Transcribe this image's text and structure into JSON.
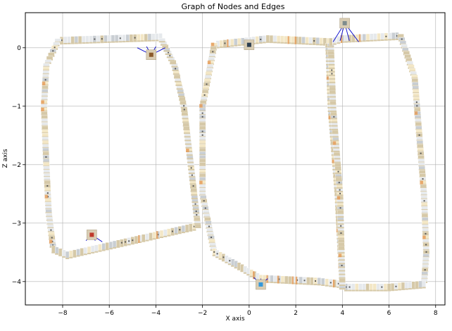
{
  "chart_data": {
    "type": "scatter",
    "title": "Graph of Nodes and Edges",
    "xlabel": "X axis",
    "ylabel": "Z axis",
    "xlim": [
      -9.6,
      8.4
    ],
    "ylim": [
      -4.4,
      0.6
    ],
    "xticks": [
      -8,
      -6,
      -4,
      -2,
      0,
      2,
      4,
      6,
      8
    ],
    "yticks": [
      0,
      -1,
      -2,
      -3,
      -4
    ],
    "xtick_labels": [
      "−8",
      "−6",
      "−4",
      "−2",
      "0",
      "2",
      "4",
      "6",
      "8"
    ],
    "ytick_labels": [
      "0",
      "−1",
      "−2",
      "−3",
      "−4"
    ],
    "grid": true,
    "trajectory_loops": [
      {
        "points": [
          {
            "x": -3.8,
            "z": 0.18
          },
          {
            "x": -8.2,
            "z": 0.12
          },
          {
            "x": -8.7,
            "z": -0.3
          },
          {
            "x": -8.8,
            "z": -1.0
          },
          {
            "x": -8.7,
            "z": -2.0
          },
          {
            "x": -8.6,
            "z": -2.8
          },
          {
            "x": -8.4,
            "z": -3.45
          },
          {
            "x": -7.8,
            "z": -3.55
          },
          {
            "x": -5.0,
            "z": -3.3
          },
          {
            "x": -2.2,
            "z": -3.05
          },
          {
            "x": -2.5,
            "z": -2.0
          },
          {
            "x": -2.8,
            "z": -1.0
          },
          {
            "x": -3.2,
            "z": -0.3
          },
          {
            "x": -3.8,
            "z": 0.18
          }
        ]
      },
      {
        "points": [
          {
            "x": 3.4,
            "z": 0.1
          },
          {
            "x": 0.8,
            "z": 0.15
          },
          {
            "x": -1.5,
            "z": 0.05
          },
          {
            "x": -2.0,
            "z": -1.0
          },
          {
            "x": -2.0,
            "z": -2.5
          },
          {
            "x": -1.5,
            "z": -3.5
          },
          {
            "x": 0.5,
            "z": -3.95
          },
          {
            "x": 3.0,
            "z": -4.0
          },
          {
            "x": 4.0,
            "z": -4.05
          },
          {
            "x": 3.8,
            "z": -2.5
          },
          {
            "x": 3.5,
            "z": -1.0
          },
          {
            "x": 3.4,
            "z": 0.1
          }
        ]
      },
      {
        "points": [
          {
            "x": 4.0,
            "z": 0.15
          },
          {
            "x": 6.5,
            "z": 0.2
          },
          {
            "x": 7.1,
            "z": -0.5
          },
          {
            "x": 7.3,
            "z": -1.5
          },
          {
            "x": 7.5,
            "z": -2.5
          },
          {
            "x": 7.6,
            "z": -3.5
          },
          {
            "x": 7.5,
            "z": -4.05
          },
          {
            "x": 6.0,
            "z": -4.1
          },
          {
            "x": 4.0,
            "z": -4.1
          },
          {
            "x": 3.9,
            "z": -2.5
          },
          {
            "x": 3.6,
            "z": -1.0
          },
          {
            "x": 3.5,
            "z": 0.1
          },
          {
            "x": 4.0,
            "z": 0.15
          }
        ]
      }
    ],
    "landmarks": [
      {
        "x": -4.2,
        "z": -0.12,
        "color": "#8b5a2b",
        "edge_targets": [
          [
            -4.8,
            0.0
          ],
          [
            -4.4,
            0.02
          ],
          [
            -4.0,
            0.02
          ],
          [
            -3.6,
            0.0
          ]
        ]
      },
      {
        "x": -6.75,
        "z": -3.2,
        "color": "#c0392b",
        "edge_targets": [
          [
            -7.0,
            -3.3
          ],
          [
            -6.6,
            -3.3
          ],
          [
            -6.3,
            -3.32
          ]
        ]
      },
      {
        "x": 4.1,
        "z": 0.42,
        "color": "#7f8c8d",
        "edge_targets": [
          [
            3.6,
            0.1
          ],
          [
            3.9,
            0.12
          ],
          [
            4.3,
            0.12
          ],
          [
            4.7,
            0.1
          ]
        ]
      },
      {
        "x": 0.5,
        "z": -4.05,
        "color": "#3498db",
        "edge_targets": [
          [
            0.2,
            -3.93
          ],
          [
            0.5,
            -3.95
          ],
          [
            0.8,
            -3.95
          ]
        ]
      },
      {
        "x": 0.0,
        "z": 0.05,
        "color": "#2c3e50",
        "edge_targets": [
          [
            -0.2,
            0.12
          ],
          [
            0.2,
            0.12
          ]
        ]
      }
    ],
    "colors": {
      "edge": "#0000cc",
      "node_light": "#e6e9ec",
      "node_mid": "#c9ced3",
      "node_beige": "#d6c9a8",
      "node_cream": "#f3e7c6",
      "node_dark": "#5a5a5a",
      "node_orange": "#e59a55",
      "grid": "#b0b0b0"
    }
  }
}
